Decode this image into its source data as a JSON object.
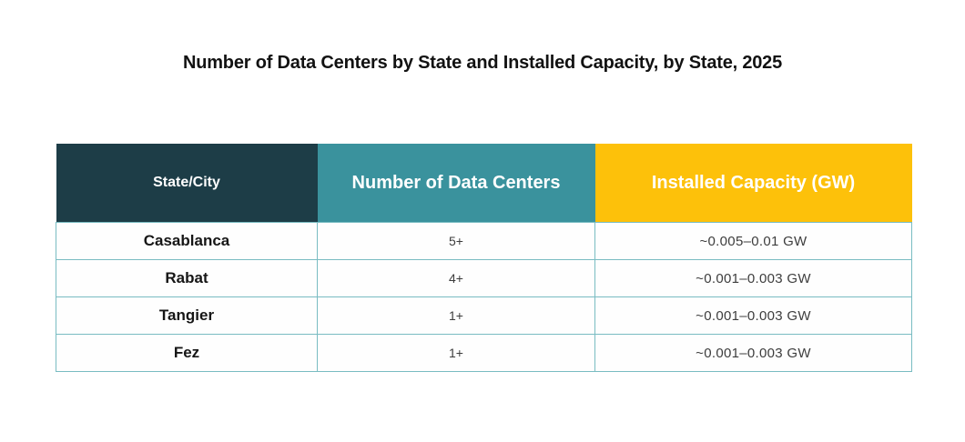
{
  "title": "Number of Data Centers by State and Installed Capacity, by State, 2025",
  "chart_data": {
    "type": "table",
    "title": "Number of Data Centers by State and Installed Capacity, by State, 2025",
    "columns": [
      "State/City",
      "Number of Data Centers",
      "Installed Capacity (GW)"
    ],
    "rows": [
      [
        "Casablanca",
        "5+",
        "~0.005–0.01 GW"
      ],
      [
        "Rabat",
        "4+",
        "~0.001–0.003 GW"
      ],
      [
        "Tangier",
        "1+",
        "~0.001–0.003 GW"
      ],
      [
        "Fez",
        "1+",
        "~0.001–0.003 GW"
      ]
    ],
    "year": "2025"
  },
  "colors": {
    "header_state_bg": "#1d3d47",
    "header_count_bg": "#3a929d",
    "header_capacity_bg": "#fdc10a",
    "header_text": "#ffffff",
    "grid_border": "#79bcc2",
    "title_text": "#121212",
    "body_text": "#161616",
    "value_text": "#3d3d3d"
  }
}
